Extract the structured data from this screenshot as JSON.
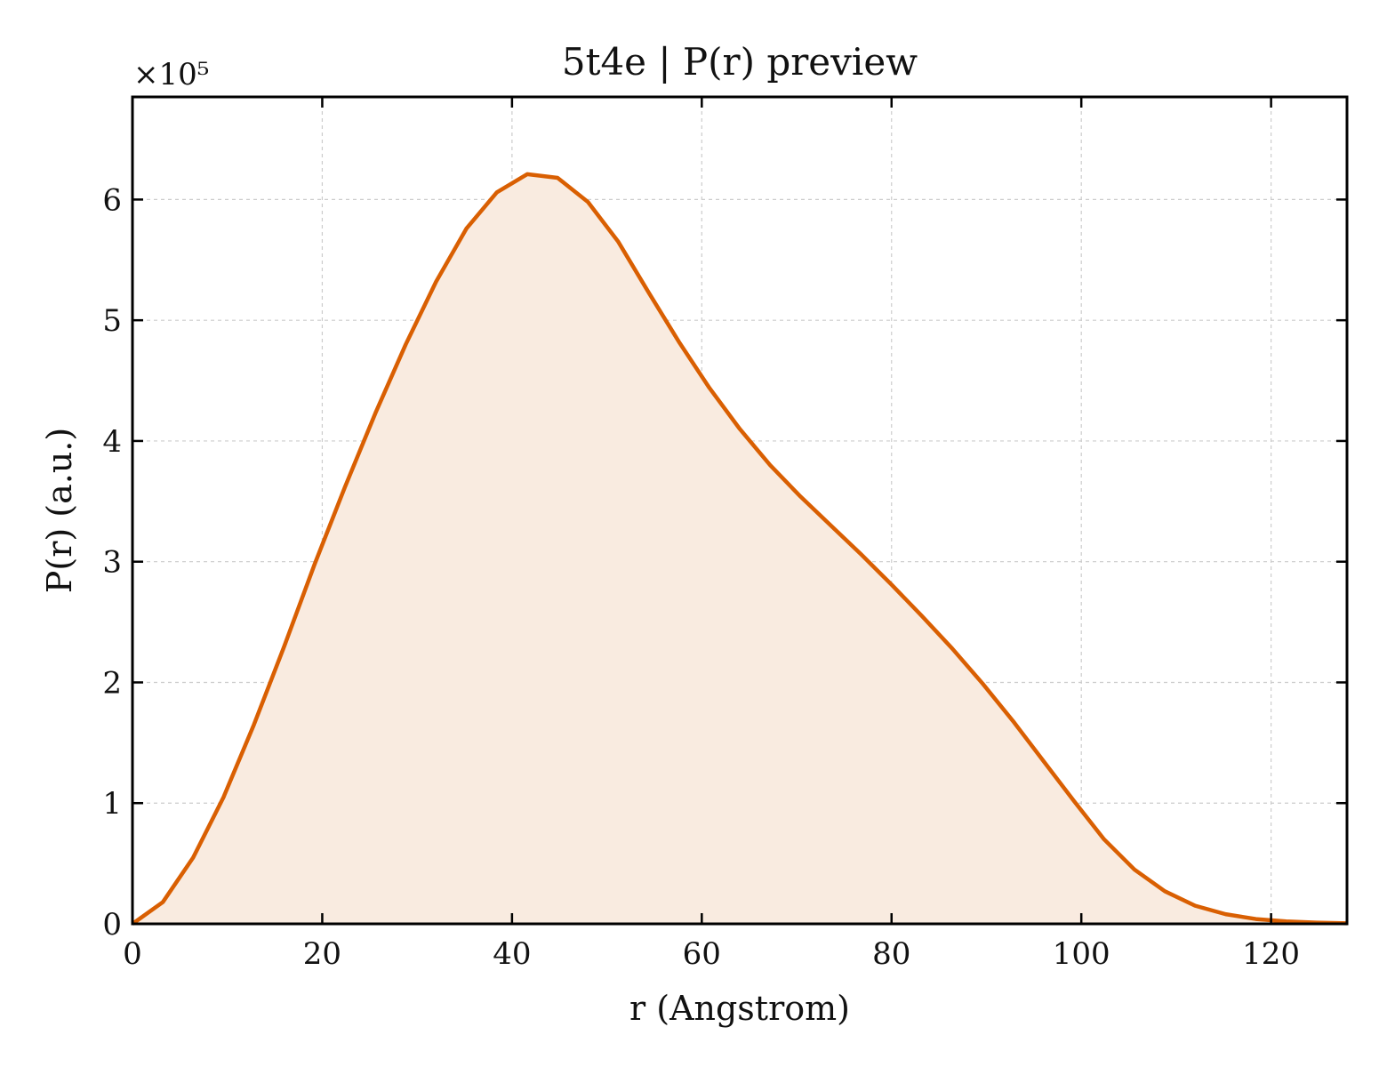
{
  "chart_data": {
    "type": "area",
    "title": "5t4e | P(r) preview",
    "xlabel": "r (Angstrom)",
    "ylabel": "P(r) (a.u.)",
    "y_multiplier": "×10⁵",
    "xlim": [
      0,
      128
    ],
    "ylim": [
      0,
      6.85
    ],
    "x_ticks": [
      0,
      20,
      40,
      60,
      80,
      100,
      120
    ],
    "x_tick_labels": [
      "0",
      "20",
      "40",
      "60",
      "80",
      "100",
      "120"
    ],
    "y_ticks": [
      0,
      1,
      2,
      3,
      4,
      5,
      6
    ],
    "y_tick_labels": [
      "0",
      "1",
      "2",
      "3",
      "4",
      "5",
      "6"
    ],
    "grid": true,
    "legend": "none",
    "line_color": "#d95f02",
    "fill_color": "#f9ebe0",
    "series": [
      {
        "x": [
          0,
          3.2,
          6.4,
          9.6,
          12.8,
          16.0,
          19.2,
          22.4,
          25.6,
          28.8,
          32.0,
          35.2,
          38.4,
          41.6,
          44.8,
          48.0,
          51.2,
          54.4,
          57.6,
          60.8,
          64.0,
          67.2,
          70.4,
          73.6,
          76.8,
          80.0,
          83.2,
          86.4,
          89.6,
          92.8,
          96.0,
          99.2,
          102.4,
          105.6,
          108.8,
          112.0,
          115.2,
          118.4,
          121.6,
          124.8,
          128.0
        ],
        "y": [
          0.0,
          0.18,
          0.55,
          1.05,
          1.65,
          2.3,
          2.98,
          3.62,
          4.23,
          4.8,
          5.32,
          5.76,
          6.06,
          6.21,
          6.18,
          5.98,
          5.65,
          5.23,
          4.82,
          4.44,
          4.1,
          3.8,
          3.54,
          3.3,
          3.06,
          2.81,
          2.55,
          2.28,
          1.99,
          1.68,
          1.35,
          1.02,
          0.7,
          0.45,
          0.27,
          0.15,
          0.08,
          0.04,
          0.02,
          0.01,
          0.005
        ]
      }
    ]
  }
}
